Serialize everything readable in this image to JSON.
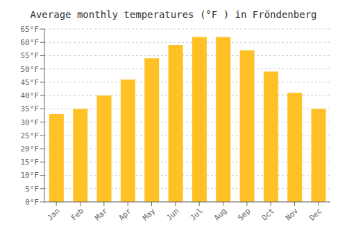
{
  "chart_data": {
    "type": "bar",
    "title": "Average monthly temperatures (°F ) in Fröndenberg",
    "categories": [
      "Jan",
      "Feb",
      "Mar",
      "Apr",
      "May",
      "Jun",
      "Jul",
      "Aug",
      "Sep",
      "Oct",
      "Nov",
      "Dec"
    ],
    "values": [
      33,
      35,
      40,
      46,
      54,
      59,
      62,
      62,
      57,
      49,
      41,
      35
    ],
    "color": "#FFC125",
    "ylim": [
      0,
      65
    ],
    "yticks": [
      {
        "value": 0,
        "label": "0°F"
      },
      {
        "value": 5,
        "label": "5°F"
      },
      {
        "value": 10,
        "label": "10°F"
      },
      {
        "value": 15,
        "label": "15°F"
      },
      {
        "value": 20,
        "label": "20°F"
      },
      {
        "value": 25,
        "label": "25°F"
      },
      {
        "value": 30,
        "label": "30°F"
      },
      {
        "value": 35,
        "label": "35°F"
      },
      {
        "value": 40,
        "label": "40°F"
      },
      {
        "value": 45,
        "label": "45°F"
      },
      {
        "value": 50,
        "label": "50°F"
      },
      {
        "value": 55,
        "label": "55°F"
      },
      {
        "value": 60,
        "label": "60°F"
      },
      {
        "value": 65,
        "label": "65°F"
      }
    ],
    "grid": true
  }
}
